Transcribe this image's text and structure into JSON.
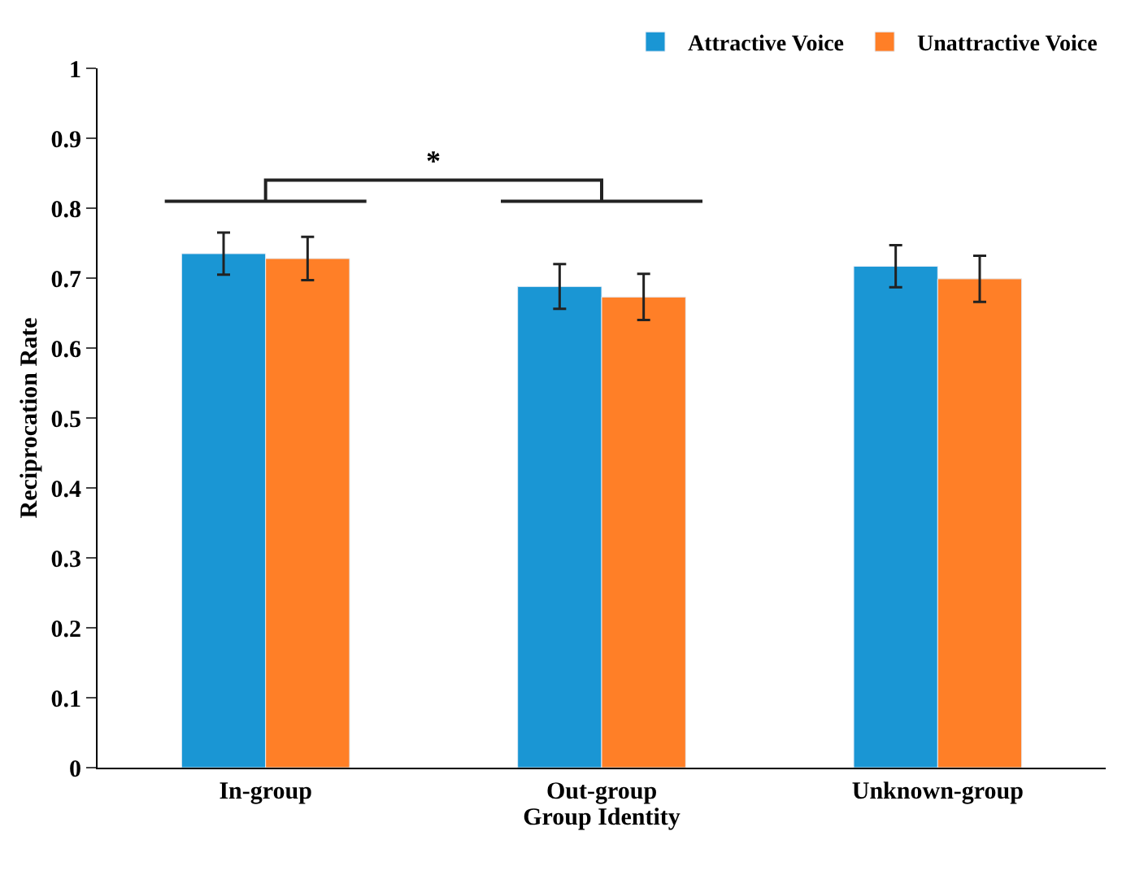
{
  "chart_data": {
    "type": "bar",
    "xlabel": "Group Identity",
    "ylabel": "Reciprocation Rate",
    "categories": [
      "In-group",
      "Out-group",
      "Unknown-group"
    ],
    "series": [
      {
        "name": "Attractive Voice",
        "color": "#1a96d4",
        "values": [
          0.735,
          0.688,
          0.717
        ],
        "errors": [
          0.03,
          0.032,
          0.03
        ]
      },
      {
        "name": "Unattractive Voice",
        "color": "#ff7f27",
        "values": [
          0.728,
          0.673,
          0.699
        ],
        "errors": [
          0.031,
          0.033,
          0.033
        ]
      }
    ],
    "ylim": [
      0,
      1
    ],
    "yticks": [
      0,
      0.1,
      0.2,
      0.3,
      0.4,
      0.5,
      0.6,
      0.7,
      0.8,
      0.9,
      1
    ],
    "legend": "top right",
    "annotations": [
      "*"
    ]
  }
}
